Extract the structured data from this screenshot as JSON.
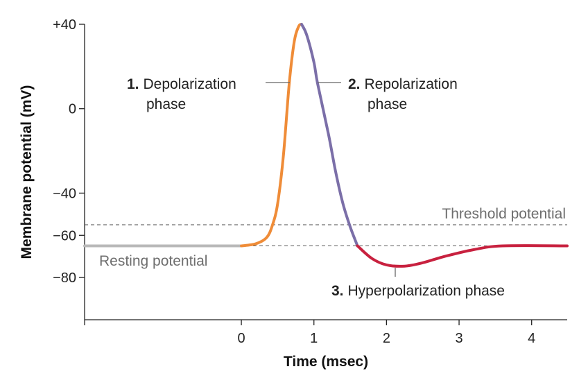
{
  "chart_data": {
    "type": "line",
    "title": "",
    "xlabel": "Time (msec)",
    "ylabel": "Membrane potential (mV)",
    "xlim": [
      -2.16,
      4.49
    ],
    "ylim": [
      -100,
      40
    ],
    "x_ticks": [
      0,
      1,
      2,
      3,
      4
    ],
    "x_tick_labels": [
      "0",
      "1",
      "2",
      "3",
      "4"
    ],
    "y_ticks": [
      40,
      0,
      -40,
      -60,
      -80
    ],
    "y_tick_labels": [
      "+40",
      "0",
      "−40",
      "−60",
      "−80"
    ],
    "grid": false,
    "reference_lines": [
      {
        "label": "Threshold potential",
        "y": -55,
        "style": "dashed"
      },
      {
        "label": "Resting potential",
        "y": -65,
        "style": "dashed"
      }
    ],
    "series": [
      {
        "phase": "resting",
        "color": "#b8b8b8",
        "points": [
          [
            -2.16,
            -65
          ],
          [
            0,
            -65
          ]
        ]
      },
      {
        "phase": "depolarization",
        "color": "#ef8c38",
        "points": [
          [
            0,
            -65
          ],
          [
            0.2,
            -64
          ],
          [
            0.35,
            -61
          ],
          [
            0.43,
            -55
          ],
          [
            0.5,
            -45
          ],
          [
            0.58,
            -22
          ],
          [
            0.66,
            12
          ],
          [
            0.73,
            32
          ],
          [
            0.79,
            39
          ],
          [
            0.83,
            40
          ]
        ]
      },
      {
        "phase": "repolarization",
        "color": "#7b6fa8",
        "points": [
          [
            0.83,
            40
          ],
          [
            0.9,
            35
          ],
          [
            1.0,
            22
          ],
          [
            1.05,
            12
          ],
          [
            1.2,
            -12
          ],
          [
            1.3,
            -30
          ],
          [
            1.4,
            -45
          ],
          [
            1.5,
            -56
          ],
          [
            1.6,
            -65
          ]
        ]
      },
      {
        "phase": "hyperpolarization",
        "color": "#c8213f",
        "points": [
          [
            1.6,
            -65
          ],
          [
            1.8,
            -71
          ],
          [
            2.0,
            -74
          ],
          [
            2.25,
            -74.6
          ],
          [
            2.5,
            -73
          ],
          [
            2.8,
            -70
          ],
          [
            3.2,
            -66.8
          ],
          [
            3.6,
            -65
          ],
          [
            4.49,
            -65
          ]
        ]
      }
    ],
    "annotations": [
      {
        "number": "1.",
        "line1": "Depolarization",
        "line2": "phase"
      },
      {
        "number": "2.",
        "line1": "Repolarization",
        "line2": "phase"
      },
      {
        "number": "3.",
        "line1": "Hyperpolarization phase"
      }
    ]
  }
}
